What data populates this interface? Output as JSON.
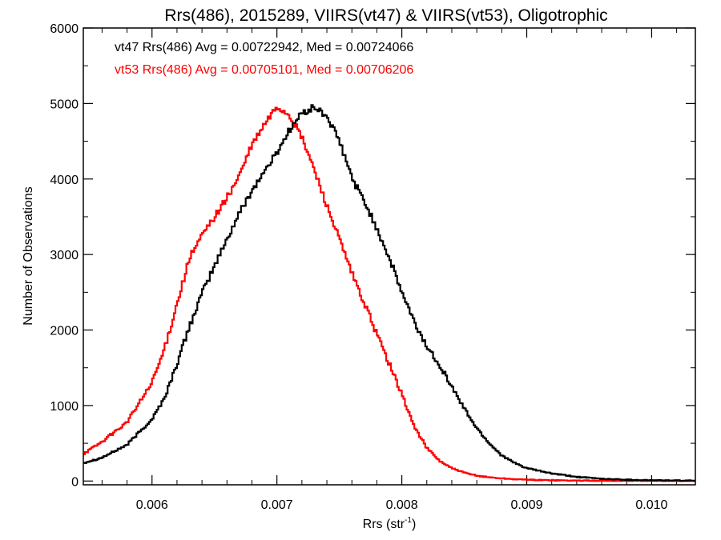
{
  "colors": {
    "vt47": "#000000",
    "vt53": "#ff0000"
  },
  "chart_data": {
    "type": "line",
    "title": "Rrs(486), 2015289, VIIRS(vt47) & VIIRS(vt53), Oligotrophic",
    "xlabel": "Rrs (str",
    "xlabel_sup": "-1",
    "xlabel_tail": ")",
    "ylabel": "Number of Observations",
    "xlim": [
      0.00545,
      0.01035
    ],
    "ylim": [
      -50,
      6000
    ],
    "xticks": [
      0.006,
      0.007,
      0.008,
      0.009,
      0.01
    ],
    "xtick_labels": [
      "0.006",
      "0.007",
      "0.008",
      "0.009",
      "0.010"
    ],
    "yticks": [
      0,
      1000,
      2000,
      3000,
      4000,
      5000,
      6000
    ],
    "ytick_labels": [
      "0",
      "1000",
      "2000",
      "3000",
      "4000",
      "5000",
      "6000"
    ],
    "grid": false,
    "legend_position": "top-left",
    "series": [
      {
        "name": "vt47",
        "stat_label": "vt47 Rrs(486) Avg = 0.00722942, Med = 0.00724066",
        "x": [
          0.00545,
          0.0056,
          0.0058,
          0.006,
          0.0061,
          0.0062,
          0.0063,
          0.0064,
          0.0065,
          0.0066,
          0.0067,
          0.0068,
          0.0069,
          0.007,
          0.0071,
          0.0072,
          0.0073,
          0.0074,
          0.0075,
          0.0076,
          0.0077,
          0.0078,
          0.0079,
          0.008,
          0.0081,
          0.0082,
          0.0083,
          0.0084,
          0.0085,
          0.0086,
          0.0087,
          0.0088,
          0.0089,
          0.009,
          0.0092,
          0.0094,
          0.0096,
          0.0098,
          0.01,
          0.01035
        ],
        "y": [
          240,
          310,
          480,
          820,
          1100,
          1550,
          2050,
          2480,
          2850,
          3200,
          3550,
          3850,
          4100,
          4350,
          4650,
          4870,
          4950,
          4830,
          4500,
          4020,
          3700,
          3350,
          2950,
          2500,
          2100,
          1780,
          1550,
          1250,
          960,
          700,
          500,
          340,
          240,
          170,
          100,
          55,
          30,
          18,
          10,
          4
        ]
      },
      {
        "name": "vt53",
        "stat_label": "vt53 Rrs(486) Avg = 0.00705101, Med = 0.00706206",
        "x": [
          0.00545,
          0.0056,
          0.0058,
          0.006,
          0.0061,
          0.0062,
          0.0063,
          0.0064,
          0.0065,
          0.0066,
          0.0067,
          0.0068,
          0.0069,
          0.007,
          0.0071,
          0.0072,
          0.0073,
          0.0074,
          0.0075,
          0.0076,
          0.0077,
          0.0078,
          0.0079,
          0.008,
          0.0081,
          0.0082,
          0.0083,
          0.0084,
          0.0085,
          0.0086,
          0.0087,
          0.0088,
          0.0089,
          0.009,
          0.0092,
          0.0094,
          0.0096,
          0.0098,
          0.01,
          0.01035
        ],
        "y": [
          360,
          520,
          780,
          1300,
          1750,
          2350,
          2950,
          3250,
          3500,
          3750,
          4050,
          4450,
          4720,
          4960,
          4850,
          4550,
          4120,
          3650,
          3200,
          2750,
          2350,
          1950,
          1550,
          1150,
          720,
          440,
          270,
          170,
          110,
          70,
          50,
          35,
          25,
          17,
          10,
          6,
          4,
          3,
          2,
          1
        ]
      }
    ]
  }
}
